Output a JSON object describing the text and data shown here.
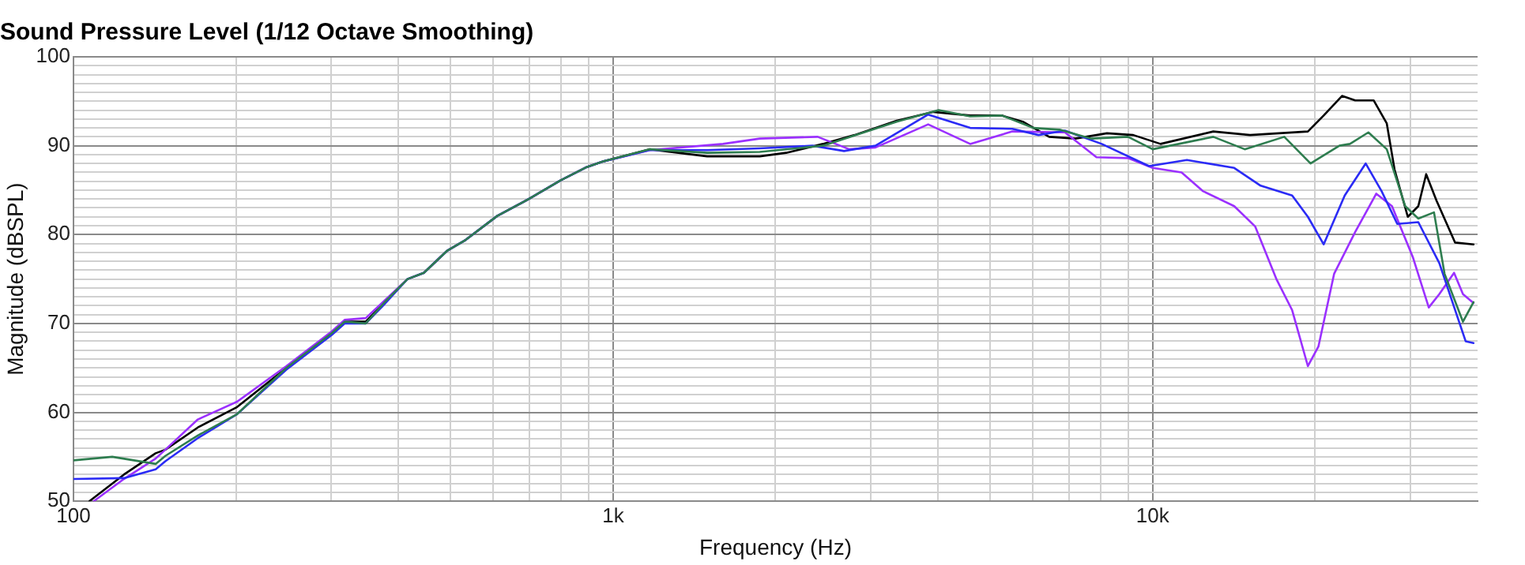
{
  "chart_data": {
    "type": "line",
    "title": "Sound Pressure Level (1/12 Octave Smoothing)",
    "xlabel": "Frequency (Hz)",
    "ylabel": "Magnitude (dBSPL)",
    "log": "x",
    "grid": true,
    "legend": false,
    "marker": "none",
    "line_style": "solid",
    "xlim": [
      100,
      40000
    ],
    "ylim": [
      50,
      100
    ],
    "xticks": [
      {
        "value": 100,
        "label": "100"
      },
      {
        "value": 200,
        "label": null
      },
      {
        "value": 300,
        "label": null
      },
      {
        "value": 400,
        "label": null
      },
      {
        "value": 500,
        "label": null
      },
      {
        "value": 600,
        "label": null
      },
      {
        "value": 700,
        "label": null
      },
      {
        "value": 800,
        "label": null
      },
      {
        "value": 900,
        "label": null
      },
      {
        "value": 1000,
        "label": "1k"
      },
      {
        "value": 2000,
        "label": null
      },
      {
        "value": 3000,
        "label": null
      },
      {
        "value": 4000,
        "label": null
      },
      {
        "value": 5000,
        "label": null
      },
      {
        "value": 6000,
        "label": null
      },
      {
        "value": 7000,
        "label": null
      },
      {
        "value": 8000,
        "label": null
      },
      {
        "value": 9000,
        "label": null
      },
      {
        "value": 10000,
        "label": "10k"
      },
      {
        "value": 20000,
        "label": null
      },
      {
        "value": 30000,
        "label": null
      }
    ],
    "yticks": [
      50,
      {
        "value": 51,
        "label": null
      },
      {
        "value": 52,
        "label": null
      },
      {
        "value": 53,
        "label": null
      },
      {
        "value": 54,
        "label": null
      },
      {
        "value": 55,
        "label": null
      },
      {
        "value": 56,
        "label": null
      },
      {
        "value": 57,
        "label": null
      },
      {
        "value": 58,
        "label": null
      },
      {
        "value": 59,
        "label": null
      },
      60,
      {
        "value": 61,
        "label": null
      },
      {
        "value": 62,
        "label": null
      },
      {
        "value": 63,
        "label": null
      },
      {
        "value": 64,
        "label": null
      },
      {
        "value": 65,
        "label": null
      },
      {
        "value": 66,
        "label": null
      },
      {
        "value": 67,
        "label": null
      },
      {
        "value": 68,
        "label": null
      },
      {
        "value": 69,
        "label": null
      },
      70,
      {
        "value": 71,
        "label": null
      },
      {
        "value": 72,
        "label": null
      },
      {
        "value": 73,
        "label": null
      },
      {
        "value": 74,
        "label": null
      },
      {
        "value": 75,
        "label": null
      },
      {
        "value": 76,
        "label": null
      },
      {
        "value": 77,
        "label": null
      },
      {
        "value": 78,
        "label": null
      },
      {
        "value": 79,
        "label": null
      },
      80,
      {
        "value": 81,
        "label": null
      },
      {
        "value": 82,
        "label": null
      },
      {
        "value": 83,
        "label": null
      },
      {
        "value": 84,
        "label": null
      },
      {
        "value": 85,
        "label": null
      },
      {
        "value": 86,
        "label": null
      },
      {
        "value": 87,
        "label": null
      },
      {
        "value": 88,
        "label": null
      },
      {
        "value": 89,
        "label": null
      },
      90,
      {
        "value": 91,
        "label": null
      },
      {
        "value": 92,
        "label": null
      },
      {
        "value": 93,
        "label": null
      },
      {
        "value": 94,
        "label": null
      },
      {
        "value": 95,
        "label": null
      },
      {
        "value": 96,
        "label": null
      },
      {
        "value": 97,
        "label": null
      },
      {
        "value": 98,
        "label": null
      },
      {
        "value": 99,
        "label": null
      },
      100
    ],
    "series": [
      {
        "color": "#2e7d4f",
        "x": [
          100,
          118,
          142,
          148,
          170,
          201,
          248,
          301,
          318,
          348,
          376,
          416,
          446,
          493,
          533,
          610,
          698,
          799,
          894,
          954,
          1168,
          1494,
          1870,
          2448,
          3353,
          4012,
          4589,
          5252,
          6007,
          6721,
          7691,
          9000,
          10000,
          12950,
          14810,
          17530,
          19610,
          22180,
          23200,
          25100,
          27150,
          29370,
          31060,
          33210,
          34740,
          37580,
          39310
        ],
        "values": [
          54.6,
          55,
          54.2,
          55.1,
          57.4,
          59.8,
          65,
          68.9,
          70.2,
          70,
          72.3,
          75,
          75.7,
          78.2,
          79.4,
          82.1,
          84,
          86.1,
          87.6,
          88.2,
          89.6,
          89.2,
          89.3,
          90,
          92.7,
          94,
          93.3,
          93.4,
          92,
          91.8,
          90.8,
          91,
          89.6,
          91,
          89.6,
          91,
          88,
          90,
          90.2,
          91.5,
          89.6,
          83.2,
          81.8,
          82.5,
          75.6,
          70.2,
          72.4
        ]
      },
      {
        "color": "#2b2bf5",
        "x": [
          100,
          124,
          142,
          148,
          170,
          201,
          248,
          301,
          318,
          348,
          376,
          416,
          446,
          493,
          533,
          610,
          698,
          799,
          894,
          954,
          1168,
          1494,
          1870,
          2341,
          2679,
          3064,
          3836,
          4589,
          5493,
          6143,
          6875,
          8044,
          9845,
          11570,
          14160,
          15850,
          18130,
          19390,
          20740,
          22690,
          24810,
          26550,
          28390,
          31060,
          33970,
          38010,
          39310
        ],
        "values": [
          52.5,
          52.6,
          53.6,
          54.5,
          57.1,
          59.8,
          64.8,
          68.7,
          70,
          70,
          72.1,
          75,
          75.7,
          78.2,
          79.4,
          82.1,
          84,
          86.1,
          87.6,
          88.2,
          89.5,
          89.5,
          89.7,
          90,
          89.4,
          90,
          93.5,
          92,
          91.9,
          91.2,
          91.7,
          90.2,
          87.7,
          88.4,
          87.5,
          85.5,
          84.4,
          82,
          78.9,
          84.4,
          88,
          84.9,
          81.2,
          81.4,
          76.8,
          68,
          67.8
        ]
      },
      {
        "color": "#9b30ff",
        "x": [
          109,
          124,
          142,
          148,
          170,
          201,
          248,
          301,
          318,
          348,
          376,
          416,
          446,
          493,
          533,
          610,
          698,
          799,
          894,
          954,
          1168,
          1598,
          1870,
          2394,
          2739,
          3064,
          3836,
          4589,
          5493,
          6875,
          7866,
          9000,
          10000,
          11310,
          12380,
          14160,
          15490,
          16950,
          18130,
          19390,
          20280,
          21690,
          23730,
          25960,
          27760,
          30370,
          32480,
          33970,
          36180,
          37580,
          39310
        ],
        "values": [
          50,
          52.5,
          54.8,
          55.8,
          59.2,
          61.2,
          65.2,
          69.1,
          70.4,
          70.6,
          72.5,
          75,
          75.7,
          78.2,
          79.4,
          82.1,
          84,
          86.1,
          87.6,
          88.2,
          89.5,
          90.2,
          90.8,
          91,
          89.6,
          89.8,
          92.4,
          90.2,
          91.6,
          91.5,
          88.7,
          88.6,
          87.5,
          87,
          84.9,
          83.2,
          80.9,
          75,
          71.5,
          65.2,
          67.4,
          75.6,
          80.3,
          84.6,
          83.2,
          77.4,
          71.8,
          73.3,
          75.7,
          73.3,
          72.3
        ]
      },
      {
        "color": "#000000",
        "x": [
          107,
          124,
          142,
          148,
          170,
          201,
          248,
          301,
          318,
          348,
          376,
          416,
          446,
          493,
          533,
          610,
          698,
          799,
          894,
          954,
          1168,
          1494,
          1870,
          2093,
          2448,
          2802,
          3353,
          3924,
          4589,
          5252,
          5744,
          6427,
          7190,
          8226,
          9204,
          10340,
          12950,
          15150,
          19390,
          20740,
          22430,
          23730,
          25670,
          27150,
          28070,
          29700,
          31060,
          32120,
          33580,
          36340,
          39310
        ],
        "values": [
          50,
          53,
          55.4,
          55.8,
          58.3,
          60.6,
          65,
          68.9,
          70.2,
          70.2,
          72.3,
          75,
          75.7,
          78.2,
          79.4,
          82.1,
          84,
          86.1,
          87.6,
          88.2,
          89.6,
          88.8,
          88.8,
          89.2,
          90.2,
          91.2,
          92.8,
          93.8,
          93.4,
          93.4,
          92.7,
          91,
          90.8,
          91.4,
          91.2,
          90.2,
          91.6,
          91.2,
          91.6,
          93.4,
          95.6,
          95.1,
          95.1,
          92.5,
          87.3,
          82,
          83.2,
          86.8,
          83.8,
          79.1,
          78.9
        ]
      }
    ]
  }
}
